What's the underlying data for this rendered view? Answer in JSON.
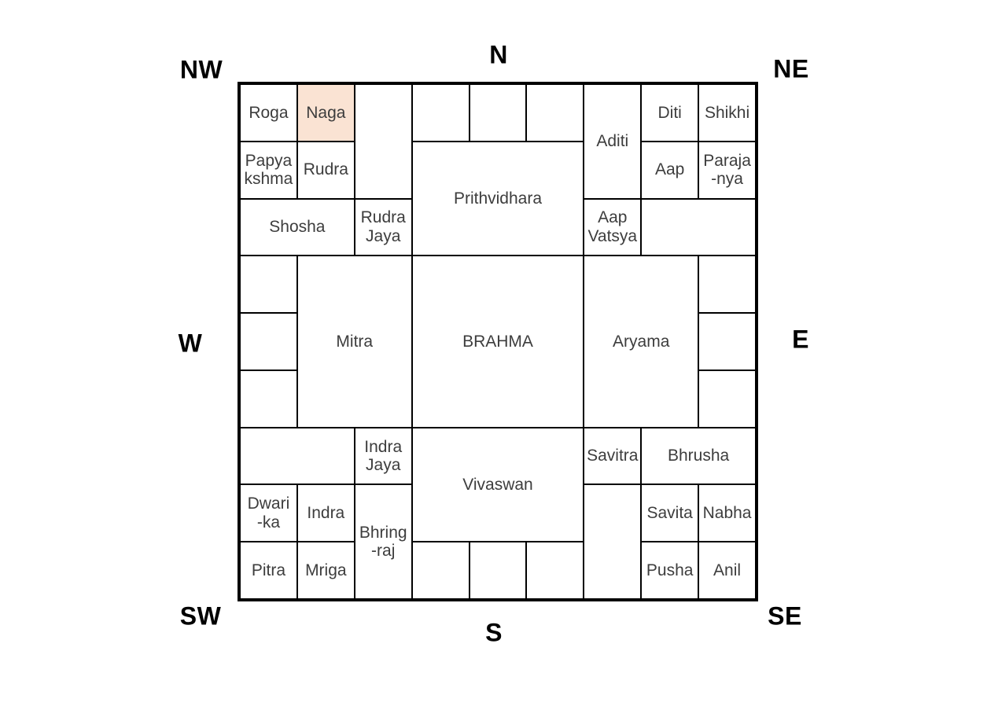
{
  "compass": {
    "n": "N",
    "ne": "NE",
    "e": "E",
    "se": "SE",
    "s": "S",
    "sw": "SW",
    "w": "W",
    "nw": "NW"
  },
  "colors": {
    "highlight": "#fae3d3",
    "grid_line": "#000000",
    "cell_text": "#3d3d3d",
    "label_text": "#000000",
    "background": "#ffffff"
  },
  "grid": {
    "rows": 9,
    "cols": 9,
    "cells": [
      {
        "name": "roga",
        "lines": [
          "Roga"
        ],
        "col": 1,
        "row": 1,
        "colspan": 1,
        "rowspan": 1,
        "highlighted": false
      },
      {
        "name": "naga",
        "lines": [
          "Naga"
        ],
        "col": 2,
        "row": 1,
        "colspan": 1,
        "rowspan": 1,
        "highlighted": true
      },
      {
        "name": "empty-r1c3",
        "lines": [],
        "col": 3,
        "row": 1,
        "colspan": 1,
        "rowspan": 2,
        "highlighted": false
      },
      {
        "name": "empty-r1c4",
        "lines": [],
        "col": 4,
        "row": 1,
        "colspan": 1,
        "rowspan": 1,
        "highlighted": false
      },
      {
        "name": "empty-r1c5",
        "lines": [],
        "col": 5,
        "row": 1,
        "colspan": 1,
        "rowspan": 1,
        "highlighted": false
      },
      {
        "name": "empty-r1c6",
        "lines": [],
        "col": 6,
        "row": 1,
        "colspan": 1,
        "rowspan": 1,
        "highlighted": false
      },
      {
        "name": "aditi",
        "lines": [
          "Aditi"
        ],
        "col": 7,
        "row": 1,
        "colspan": 1,
        "rowspan": 2,
        "highlighted": false
      },
      {
        "name": "diti",
        "lines": [
          "Diti"
        ],
        "col": 8,
        "row": 1,
        "colspan": 1,
        "rowspan": 1,
        "highlighted": false
      },
      {
        "name": "shikhi",
        "lines": [
          "Shikhi"
        ],
        "col": 9,
        "row": 1,
        "colspan": 1,
        "rowspan": 1,
        "highlighted": false
      },
      {
        "name": "papyakshma",
        "lines": [
          "Papya",
          "kshma"
        ],
        "col": 1,
        "row": 2,
        "colspan": 1,
        "rowspan": 1,
        "highlighted": false
      },
      {
        "name": "rudra",
        "lines": [
          "Rudra"
        ],
        "col": 2,
        "row": 2,
        "colspan": 1,
        "rowspan": 1,
        "highlighted": false
      },
      {
        "name": "prithvidhara",
        "lines": [
          "Prithvidhara"
        ],
        "col": 4,
        "row": 2,
        "colspan": 3,
        "rowspan": 2,
        "highlighted": false
      },
      {
        "name": "aap",
        "lines": [
          "Aap"
        ],
        "col": 8,
        "row": 2,
        "colspan": 1,
        "rowspan": 1,
        "highlighted": false
      },
      {
        "name": "parajanya",
        "lines": [
          "Paraja",
          "-nya"
        ],
        "col": 9,
        "row": 2,
        "colspan": 1,
        "rowspan": 1,
        "highlighted": false
      },
      {
        "name": "shosha",
        "lines": [
          "Shosha"
        ],
        "col": 1,
        "row": 3,
        "colspan": 2,
        "rowspan": 1,
        "highlighted": false
      },
      {
        "name": "rudra-jaya",
        "lines": [
          "Rudra",
          "Jaya"
        ],
        "col": 3,
        "row": 3,
        "colspan": 1,
        "rowspan": 1,
        "highlighted": false
      },
      {
        "name": "aap-vatsya",
        "lines": [
          "Aap",
          "Vatsya"
        ],
        "col": 7,
        "row": 3,
        "colspan": 1,
        "rowspan": 1,
        "highlighted": false
      },
      {
        "name": "empty-r3c8",
        "lines": [],
        "col": 8,
        "row": 3,
        "colspan": 2,
        "rowspan": 1,
        "highlighted": false
      },
      {
        "name": "empty-r4c1",
        "lines": [],
        "col": 1,
        "row": 4,
        "colspan": 1,
        "rowspan": 1,
        "highlighted": false
      },
      {
        "name": "mitra",
        "lines": [
          "Mitra"
        ],
        "col": 2,
        "row": 4,
        "colspan": 2,
        "rowspan": 3,
        "highlighted": false
      },
      {
        "name": "brahma",
        "lines": [
          "BRAHMA"
        ],
        "col": 4,
        "row": 4,
        "colspan": 3,
        "rowspan": 3,
        "highlighted": false
      },
      {
        "name": "aryama",
        "lines": [
          "Aryama"
        ],
        "col": 7,
        "row": 4,
        "colspan": 2,
        "rowspan": 3,
        "highlighted": false
      },
      {
        "name": "empty-r4c9",
        "lines": [],
        "col": 9,
        "row": 4,
        "colspan": 1,
        "rowspan": 1,
        "highlighted": false
      },
      {
        "name": "empty-r5c1",
        "lines": [],
        "col": 1,
        "row": 5,
        "colspan": 1,
        "rowspan": 1,
        "highlighted": false
      },
      {
        "name": "empty-r5c9",
        "lines": [],
        "col": 9,
        "row": 5,
        "colspan": 1,
        "rowspan": 1,
        "highlighted": false
      },
      {
        "name": "empty-r6c1",
        "lines": [],
        "col": 1,
        "row": 6,
        "colspan": 1,
        "rowspan": 1,
        "highlighted": false
      },
      {
        "name": "empty-r6c9",
        "lines": [],
        "col": 9,
        "row": 6,
        "colspan": 1,
        "rowspan": 1,
        "highlighted": false
      },
      {
        "name": "empty-r7c1",
        "lines": [],
        "col": 1,
        "row": 7,
        "colspan": 2,
        "rowspan": 1,
        "highlighted": false
      },
      {
        "name": "indra-jaya",
        "lines": [
          "Indra",
          "Jaya"
        ],
        "col": 3,
        "row": 7,
        "colspan": 1,
        "rowspan": 1,
        "highlighted": false
      },
      {
        "name": "vivaswan",
        "lines": [
          "Vivaswan"
        ],
        "col": 4,
        "row": 7,
        "colspan": 3,
        "rowspan": 2,
        "highlighted": false
      },
      {
        "name": "savitra",
        "lines": [
          "Savitra"
        ],
        "col": 7,
        "row": 7,
        "colspan": 1,
        "rowspan": 1,
        "highlighted": false
      },
      {
        "name": "bhrusha",
        "lines": [
          "Bhrusha"
        ],
        "col": 8,
        "row": 7,
        "colspan": 2,
        "rowspan": 1,
        "highlighted": false
      },
      {
        "name": "dwarika",
        "lines": [
          "Dwari",
          "-ka"
        ],
        "col": 1,
        "row": 8,
        "colspan": 1,
        "rowspan": 1,
        "highlighted": false
      },
      {
        "name": "indra",
        "lines": [
          "Indra"
        ],
        "col": 2,
        "row": 8,
        "colspan": 1,
        "rowspan": 1,
        "highlighted": false
      },
      {
        "name": "bhringraj",
        "lines": [
          "Bhring",
          "-raj"
        ],
        "col": 3,
        "row": 8,
        "colspan": 1,
        "rowspan": 2,
        "highlighted": false
      },
      {
        "name": "empty-r8c7",
        "lines": [],
        "col": 7,
        "row": 8,
        "colspan": 1,
        "rowspan": 2,
        "highlighted": false
      },
      {
        "name": "savita",
        "lines": [
          "Savita"
        ],
        "col": 8,
        "row": 8,
        "colspan": 1,
        "rowspan": 1,
        "highlighted": false
      },
      {
        "name": "nabha",
        "lines": [
          "Nabha"
        ],
        "col": 9,
        "row": 8,
        "colspan": 1,
        "rowspan": 1,
        "highlighted": false
      },
      {
        "name": "pitra",
        "lines": [
          "Pitra"
        ],
        "col": 1,
        "row": 9,
        "colspan": 1,
        "rowspan": 1,
        "highlighted": false
      },
      {
        "name": "mriga",
        "lines": [
          "Mriga"
        ],
        "col": 2,
        "row": 9,
        "colspan": 1,
        "rowspan": 1,
        "highlighted": false
      },
      {
        "name": "empty-r9c4",
        "lines": [],
        "col": 4,
        "row": 9,
        "colspan": 1,
        "rowspan": 1,
        "highlighted": false
      },
      {
        "name": "empty-r9c5",
        "lines": [],
        "col": 5,
        "row": 9,
        "colspan": 1,
        "rowspan": 1,
        "highlighted": false
      },
      {
        "name": "empty-r9c6",
        "lines": [],
        "col": 6,
        "row": 9,
        "colspan": 1,
        "rowspan": 1,
        "highlighted": false
      },
      {
        "name": "pusha",
        "lines": [
          "Pusha"
        ],
        "col": 8,
        "row": 9,
        "colspan": 1,
        "rowspan": 1,
        "highlighted": false
      },
      {
        "name": "anil",
        "lines": [
          "Anil"
        ],
        "col": 9,
        "row": 9,
        "colspan": 1,
        "rowspan": 1,
        "highlighted": false
      }
    ]
  }
}
